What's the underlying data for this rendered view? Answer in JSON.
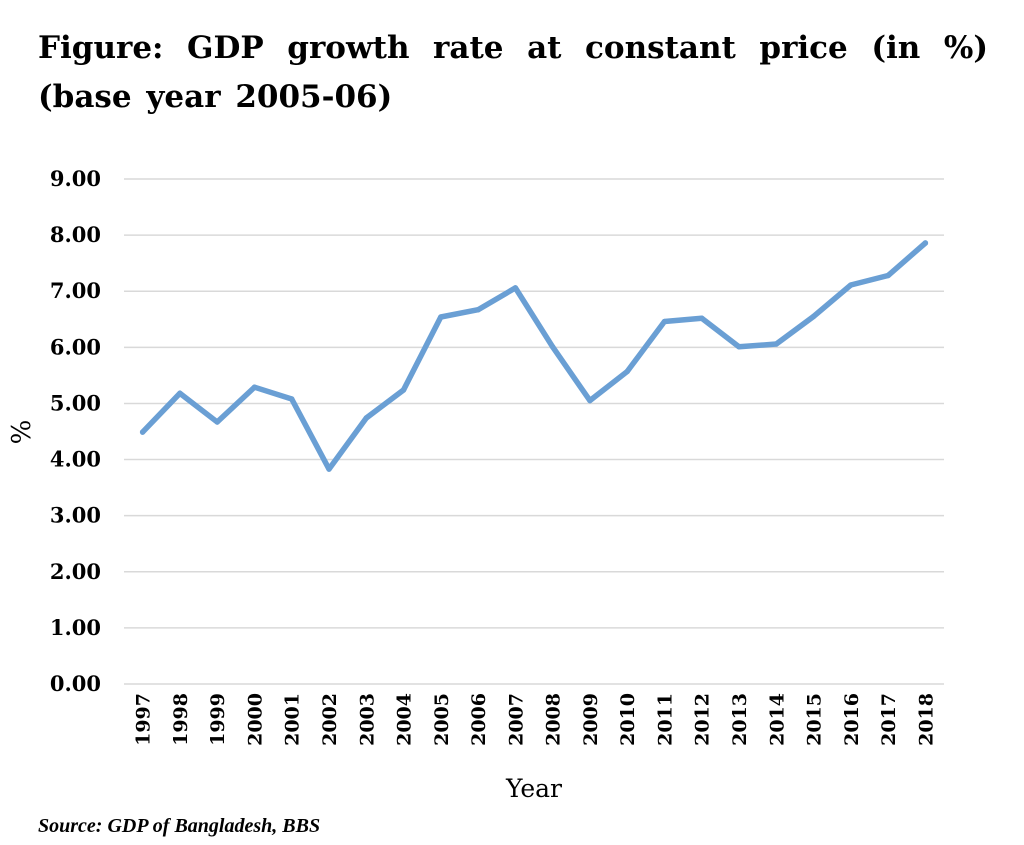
{
  "figure": {
    "title": "Figure: GDP growth rate at constant price (in %) (base year 2005-06)",
    "source": "Source: GDP of Bangladesh, BBS"
  },
  "chart_data": {
    "type": "line",
    "xlabel": "Year",
    "ylabel": "%",
    "ylim": [
      0,
      9
    ],
    "yticks": [
      "0.00",
      "1.00",
      "2.00",
      "3.00",
      "4.00",
      "5.00",
      "6.00",
      "7.00",
      "8.00",
      "9.00"
    ],
    "categories": [
      "1997",
      "1998",
      "1999",
      "2000",
      "2001",
      "2002",
      "2003",
      "2004",
      "2005",
      "2006",
      "2007",
      "2008",
      "2009",
      "2010",
      "2011",
      "2012",
      "2013",
      "2014",
      "2015",
      "2016",
      "2017",
      "2018"
    ],
    "series": [
      {
        "values": [
          4.49,
          5.18,
          4.67,
          5.29,
          5.08,
          3.83,
          4.74,
          5.24,
          6.54,
          6.67,
          7.06,
          6.01,
          5.05,
          5.57,
          6.46,
          6.52,
          6.01,
          6.06,
          6.55,
          7.11,
          7.28,
          7.86
        ]
      }
    ],
    "grid": true,
    "line_color": "#6A9FD4",
    "grid_color": "#D9D9D9"
  }
}
